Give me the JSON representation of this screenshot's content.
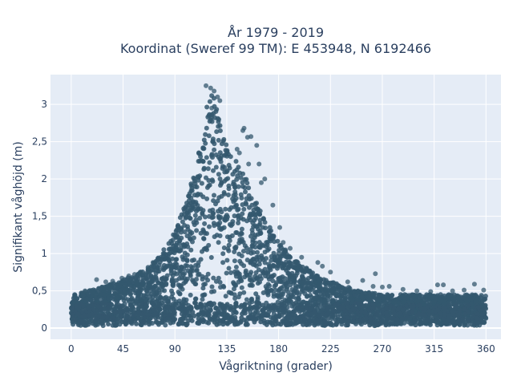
{
  "chart_data": {
    "type": "scatter",
    "title_lines": [
      "År 1979 - 2019",
      "Koordinat (Sweref 99 TM): E 453948, N 6192466"
    ],
    "xlabel": "Vågriktning (grader)",
    "ylabel": "Signifikant våghöjd (m)",
    "xlim": [
      -18,
      373
    ],
    "ylim": [
      -0.15,
      3.4
    ],
    "x_ticks": [
      0,
      45,
      90,
      135,
      180,
      225,
      270,
      315,
      360
    ],
    "x_tick_labels": [
      "0",
      "45",
      "90",
      "135",
      "180",
      "225",
      "270",
      "315",
      "360"
    ],
    "y_ticks": [
      0,
      0.5,
      1,
      1.5,
      2,
      2.5,
      3
    ],
    "y_tick_labels": [
      "0",
      "0,5",
      "1",
      "1,5",
      "2",
      "2,5",
      "3"
    ],
    "grid": true,
    "legend": "none",
    "marker_color": "#34586e",
    "plot_bg": "#e5ecf6",
    "envelope": [
      [
        0,
        0.45
      ],
      [
        10,
        0.48
      ],
      [
        20,
        0.52
      ],
      [
        30,
        0.58
      ],
      [
        40,
        0.62
      ],
      [
        50,
        0.68
      ],
      [
        60,
        0.75
      ],
      [
        70,
        0.85
      ],
      [
        80,
        1.05
      ],
      [
        90,
        1.3
      ],
      [
        100,
        1.7
      ],
      [
        108,
        2.2
      ],
      [
        115,
        2.8
      ],
      [
        120,
        3.2
      ],
      [
        125,
        3.05
      ],
      [
        130,
        2.7
      ],
      [
        135,
        2.5
      ],
      [
        140,
        2.3
      ],
      [
        145,
        2.2
      ],
      [
        150,
        2.1
      ],
      [
        155,
        1.9
      ],
      [
        160,
        1.7
      ],
      [
        170,
        1.45
      ],
      [
        180,
        1.15
      ],
      [
        190,
        0.95
      ],
      [
        200,
        0.85
      ],
      [
        210,
        0.75
      ],
      [
        220,
        0.65
      ],
      [
        230,
        0.6
      ],
      [
        240,
        0.55
      ],
      [
        250,
        0.5
      ],
      [
        270,
        0.45
      ],
      [
        300,
        0.45
      ],
      [
        330,
        0.45
      ],
      [
        360,
        0.45
      ]
    ],
    "outliers": [
      [
        117,
        3.25
      ],
      [
        121,
        3.22
      ],
      [
        124,
        3.18
      ],
      [
        127,
        3.1
      ],
      [
        129,
        3.05
      ],
      [
        122,
        2.95
      ],
      [
        150,
        2.68
      ],
      [
        149,
        2.65
      ],
      [
        161,
        2.45
      ],
      [
        156,
        2.57
      ],
      [
        153,
        2.56
      ],
      [
        144,
        2.4
      ],
      [
        146,
        2.35
      ],
      [
        154,
        2.2
      ],
      [
        163,
        2.2
      ],
      [
        168,
        2.0
      ],
      [
        165,
        1.95
      ],
      [
        175,
        1.65
      ],
      [
        181,
        1.35
      ],
      [
        184,
        1.15
      ],
      [
        190,
        1.07
      ],
      [
        186,
        1.05
      ],
      [
        180,
        1.0
      ],
      [
        200,
        0.95
      ],
      [
        214,
        0.88
      ],
      [
        218,
        0.83
      ],
      [
        225,
        0.75
      ],
      [
        240,
        0.62
      ],
      [
        253,
        0.64
      ],
      [
        262,
        0.56
      ],
      [
        264,
        0.73
      ],
      [
        270,
        0.55
      ],
      [
        276,
        0.56
      ],
      [
        288,
        0.52
      ],
      [
        300,
        0.5
      ],
      [
        312,
        0.49
      ],
      [
        318,
        0.58
      ],
      [
        323,
        0.58
      ],
      [
        331,
        0.5
      ],
      [
        341,
        0.51
      ],
      [
        350,
        0.59
      ],
      [
        358,
        0.51
      ],
      [
        71,
        0.88
      ],
      [
        60,
        0.75
      ],
      [
        55,
        0.72
      ],
      [
        44,
        0.67
      ],
      [
        36,
        0.63
      ],
      [
        30,
        0.62
      ],
      [
        22,
        0.65
      ],
      [
        12,
        0.5
      ],
      [
        3,
        0.45
      ],
      [
        34,
        0.58
      ],
      [
        50,
        0.7
      ],
      [
        68,
        0.8
      ]
    ]
  }
}
